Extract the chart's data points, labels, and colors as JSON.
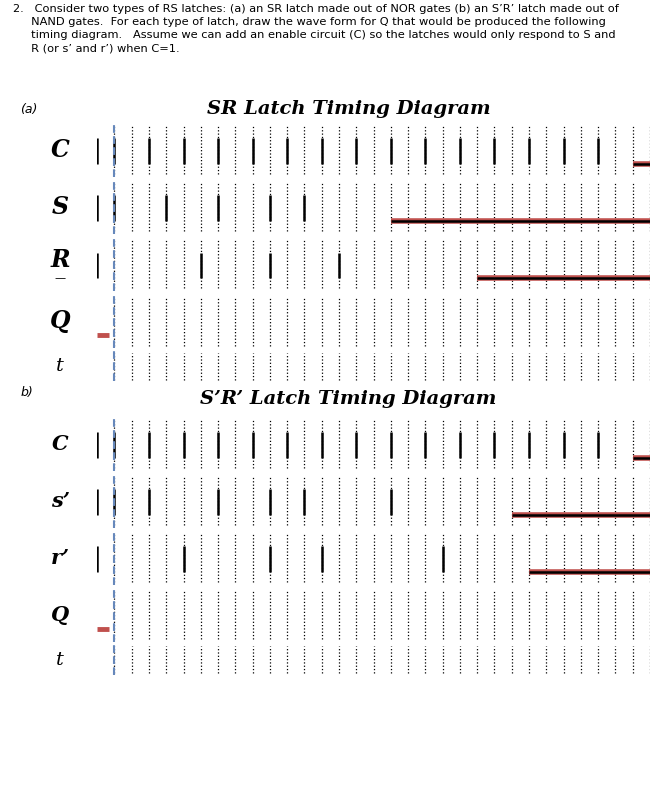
{
  "color_blue": "#5b9bd5",
  "color_red": "#c0504d",
  "color_magenta": "#ff00cc",
  "color_black": "#000000",
  "color_blue_dash": "#6699cc",
  "bg_color": "#ffffff",
  "t_total": 32,
  "n_cols": 32,
  "C_signal": [
    0,
    1,
    1,
    0,
    0,
    1,
    1,
    0,
    0,
    1,
    1,
    0,
    0,
    1,
    1,
    0,
    0,
    1,
    1,
    0,
    0,
    1,
    1,
    0,
    0,
    1,
    1,
    0,
    0,
    1,
    1,
    0
  ],
  "S_signal": [
    0,
    1,
    1,
    1,
    0,
    0,
    0,
    1,
    1,
    1,
    0,
    0,
    1,
    1,
    1,
    1,
    1,
    0,
    0,
    0,
    0,
    0,
    0,
    0,
    0,
    0,
    0,
    0,
    0,
    0,
    0,
    0
  ],
  "R_signal": [
    0,
    0,
    0,
    0,
    0,
    0,
    1,
    1,
    1,
    1,
    0,
    0,
    0,
    0,
    1,
    1,
    1,
    1,
    1,
    1,
    1,
    1,
    0,
    0,
    0,
    0,
    0,
    0,
    0,
    0,
    0,
    0
  ],
  "Sp_signal": [
    1,
    0,
    0,
    1,
    1,
    1,
    1,
    0,
    0,
    0,
    1,
    1,
    0,
    0,
    0,
    0,
    0,
    1,
    1,
    1,
    1,
    1,
    1,
    1,
    0,
    0,
    0,
    0,
    0,
    0,
    0,
    0
  ],
  "Rp_signal": [
    1,
    1,
    1,
    1,
    1,
    0,
    0,
    0,
    0,
    0,
    1,
    1,
    1,
    0,
    0,
    0,
    0,
    0,
    0,
    0,
    1,
    1,
    1,
    1,
    1,
    0,
    0,
    0,
    0,
    0,
    0,
    0
  ]
}
